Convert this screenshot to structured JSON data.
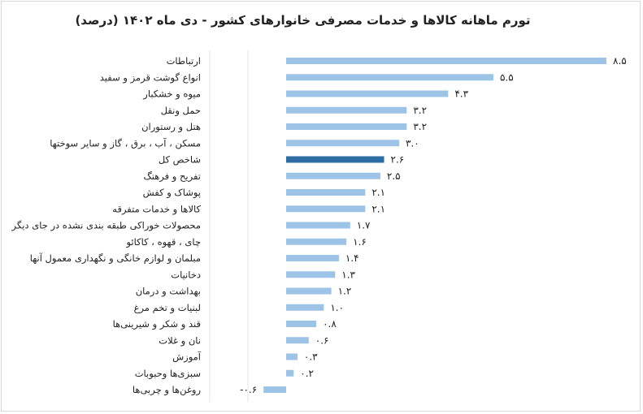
{
  "chart_data": {
    "type": "bar",
    "orientation": "horizontal",
    "title": "تورم ماهانه کالاها و خدمات مصرفی خانوارهای کشور - دی ماه ۱۴۰۲ (درصد)",
    "xlabel": "",
    "ylabel": "",
    "categories": [
      "ارتباطات",
      "انواع گوشت قرمز و سفید",
      "میوه و خشکبار",
      "حمل ونقل",
      "هتل و رستوران",
      "مسکن ، آب ، برق ، گاز و سایر سوختها",
      "شاخص کل",
      "تفریح و فرهنگ",
      "پوشاک و کفش",
      "کالاها و خدمات متفرقه",
      "محصولات خوراکی طبقه بندی نشده در جای دیگر",
      "چای ، قهوه ، کاکائو",
      "مبلمان و لوازم خانگی و نگهداری معمول آنها",
      "دخانیات",
      "بهداشت و درمان",
      "لبنیات و تخم مرغ",
      "قند و شکر و شیرینی‌ها",
      "نان و غلات",
      "آموزش",
      "سبزی‌ها وحبوبات",
      "روغن‌ها و چربی‌ها"
    ],
    "values": [
      8.5,
      5.5,
      4.3,
      3.2,
      3.2,
      3.0,
      2.6,
      2.5,
      2.1,
      2.1,
      1.7,
      1.6,
      1.4,
      1.3,
      1.2,
      1.0,
      0.8,
      0.6,
      0.3,
      0.2,
      -0.6
    ],
    "highlight_category": "شاخص کل",
    "colors": {
      "bar": "#9dc3e6",
      "highlight": "#2e6ca4"
    },
    "grid": false,
    "legend": "none"
  }
}
